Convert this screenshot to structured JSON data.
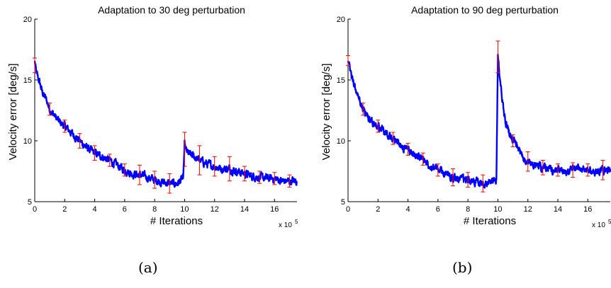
{
  "chart_data": [
    {
      "type": "line",
      "title": "Adaptation to 30 deg perturbation",
      "xlabel": "# Iterations",
      "ylabel": "Velocity error [deg/s]",
      "x_multiplier": "x 10",
      "x_multiplier_exp": "5",
      "xlim": [
        0,
        17.5
      ],
      "ylim": [
        5,
        20
      ],
      "xticks": [
        0,
        2,
        4,
        6,
        8,
        10,
        12,
        14,
        16
      ],
      "yticks": [
        5,
        10,
        15,
        20
      ],
      "grid": false,
      "line_color": "#0000ff",
      "errorbar_color": "#ff0000",
      "series": [
        {
          "x": [
            0,
            0.1,
            0.3,
            0.5,
            0.8,
            1.0,
            1.3,
            1.6,
            2.0,
            2.5,
            3.0,
            3.5,
            4.0,
            4.5,
            5.0,
            5.5,
            6.0,
            6.5,
            7.0,
            7.5,
            8.0,
            8.5,
            9.0,
            9.5,
            9.9,
            10.0,
            10.1,
            10.3,
            10.5,
            11.0,
            11.5,
            12.0,
            12.5,
            13.0,
            13.5,
            14.0,
            14.5,
            15.0,
            15.5,
            16.0,
            16.5,
            17.0,
            17.5
          ],
          "y": [
            16.5,
            15.6,
            14.9,
            14.0,
            13.3,
            12.6,
            12.1,
            11.6,
            11.2,
            10.6,
            10.0,
            9.4,
            9.0,
            8.7,
            8.4,
            8.0,
            7.6,
            7.3,
            7.2,
            7.0,
            6.8,
            6.6,
            6.5,
            6.5,
            6.9,
            9.6,
            9.2,
            8.9,
            8.8,
            8.4,
            8.1,
            7.9,
            7.7,
            7.7,
            7.5,
            7.3,
            7.1,
            7.0,
            6.9,
            6.9,
            6.7,
            6.7,
            6.7
          ]
        }
      ],
      "errorbars": [
        {
          "x": 0,
          "y": 16.2,
          "err": 0.6
        },
        {
          "x": 1,
          "y": 12.6,
          "err": 0.5
        },
        {
          "x": 2,
          "y": 11.2,
          "err": 0.5
        },
        {
          "x": 3,
          "y": 10.0,
          "err": 0.6
        },
        {
          "x": 4,
          "y": 9.0,
          "err": 0.6
        },
        {
          "x": 5,
          "y": 8.4,
          "err": 0.5
        },
        {
          "x": 6,
          "y": 7.6,
          "err": 0.5
        },
        {
          "x": 7,
          "y": 7.2,
          "err": 0.8
        },
        {
          "x": 8,
          "y": 6.8,
          "err": 0.7
        },
        {
          "x": 9,
          "y": 6.5,
          "err": 0.8
        },
        {
          "x": 10,
          "y": 9.3,
          "err": 1.4
        },
        {
          "x": 11,
          "y": 8.4,
          "err": 1.2
        },
        {
          "x": 12,
          "y": 7.9,
          "err": 0.8
        },
        {
          "x": 13,
          "y": 7.7,
          "err": 1.0
        },
        {
          "x": 14,
          "y": 7.3,
          "err": 0.6
        },
        {
          "x": 15,
          "y": 7.0,
          "err": 0.5
        },
        {
          "x": 16,
          "y": 6.9,
          "err": 0.5
        },
        {
          "x": 17,
          "y": 6.7,
          "err": 0.5
        }
      ]
    },
    {
      "type": "line",
      "title": "Adaptation to 90 deg perturbation",
      "xlabel": "# Iterations",
      "ylabel": "Velocity error [deg/s]",
      "x_multiplier": "x 10",
      "x_multiplier_exp": "5",
      "xlim": [
        0,
        17.5
      ],
      "ylim": [
        5,
        20
      ],
      "xticks": [
        0,
        2,
        4,
        6,
        8,
        10,
        12,
        14,
        16
      ],
      "yticks": [
        5,
        10,
        15,
        20
      ],
      "grid": false,
      "line_color": "#0000ff",
      "errorbar_color": "#ff0000",
      "series": [
        {
          "x": [
            0,
            0.1,
            0.3,
            0.5,
            0.8,
            1.0,
            1.3,
            1.6,
            2.0,
            2.5,
            3.0,
            3.5,
            4.0,
            4.5,
            5.0,
            5.5,
            6.0,
            6.5,
            7.0,
            7.5,
            8.0,
            8.5,
            9.0,
            9.5,
            9.9,
            10.0,
            10.1,
            10.3,
            10.5,
            10.8,
            11.0,
            11.5,
            12.0,
            12.5,
            13.0,
            13.5,
            14.0,
            14.5,
            15.0,
            15.5,
            16.0,
            16.5,
            17.0,
            17.5
          ],
          "y": [
            16.8,
            15.9,
            15.0,
            14.2,
            13.2,
            12.6,
            12.0,
            11.5,
            11.2,
            10.7,
            10.2,
            9.6,
            9.3,
            8.8,
            8.5,
            8.0,
            7.6,
            7.3,
            7.0,
            6.8,
            6.8,
            6.6,
            6.5,
            6.6,
            6.8,
            16.9,
            15.4,
            13.3,
            11.6,
            10.6,
            10.0,
            9.0,
            8.3,
            8.0,
            7.8,
            7.6,
            7.6,
            7.5,
            7.6,
            7.7,
            7.6,
            7.4,
            7.6,
            7.7
          ]
        }
      ],
      "errorbars": [
        {
          "x": 0,
          "y": 16.6,
          "err": 0.4
        },
        {
          "x": 1,
          "y": 12.6,
          "err": 0.5
        },
        {
          "x": 2,
          "y": 11.2,
          "err": 0.5
        },
        {
          "x": 3,
          "y": 10.2,
          "err": 0.5
        },
        {
          "x": 4,
          "y": 9.3,
          "err": 0.5
        },
        {
          "x": 5,
          "y": 8.5,
          "err": 0.5
        },
        {
          "x": 6,
          "y": 7.6,
          "err": 0.5
        },
        {
          "x": 7,
          "y": 7.0,
          "err": 0.7
        },
        {
          "x": 8,
          "y": 6.8,
          "err": 0.6
        },
        {
          "x": 9,
          "y": 6.5,
          "err": 0.7
        },
        {
          "x": 10,
          "y": 16.9,
          "err": 1.3
        },
        {
          "x": 11,
          "y": 10.0,
          "err": 0.5
        },
        {
          "x": 12,
          "y": 8.3,
          "err": 0.8
        },
        {
          "x": 13,
          "y": 7.8,
          "err": 0.6
        },
        {
          "x": 14,
          "y": 7.6,
          "err": 0.5
        },
        {
          "x": 15,
          "y": 7.6,
          "err": 0.6
        },
        {
          "x": 16,
          "y": 7.6,
          "err": 0.5
        },
        {
          "x": 17,
          "y": 7.6,
          "err": 0.8
        }
      ]
    }
  ],
  "captions": [
    "(a)",
    "(b)"
  ]
}
